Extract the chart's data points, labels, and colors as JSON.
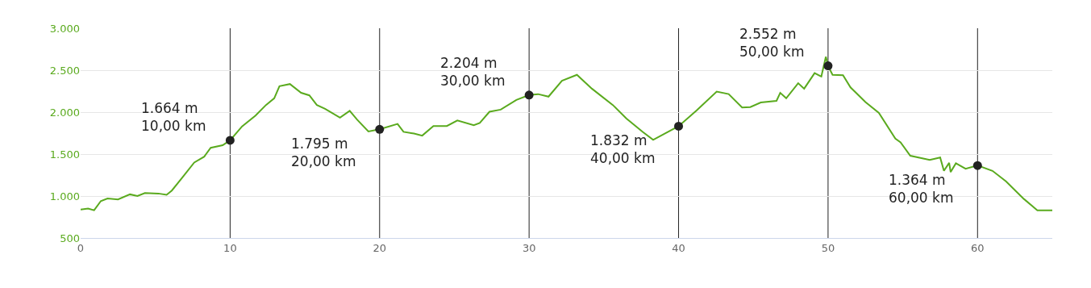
{
  "chart_data": {
    "type": "line",
    "xlim": [
      0,
      65
    ],
    "xticks": [
      0,
      10,
      20,
      30,
      40,
      50,
      60
    ],
    "ylim": [
      500,
      3000
    ],
    "yticks": [
      500,
      {
        "value": 1000,
        "label": "1.000"
      },
      {
        "value": 1500,
        "label": "1.500"
      },
      {
        "value": 2000,
        "label": "2.000"
      },
      {
        "value": 2500,
        "label": "2.500"
      },
      {
        "value": 3000,
        "label": "3.000"
      }
    ],
    "grid": "y",
    "series": [
      {
        "color": "#5aaa1e",
        "marker": "none",
        "x": [
          0,
          0.5,
          0.9,
          1.35,
          1.8,
          2.5,
          3.3,
          3.8,
          4.3,
          5.2,
          5.75,
          6.1,
          6.8,
          7.6,
          8.27,
          8.7,
          9.5,
          10,
          10.8,
          11.7,
          12.4,
          12.95,
          13.3,
          14.0,
          14.75,
          15.3,
          15.8,
          16.35,
          17.35,
          18.0,
          18.5,
          19.25,
          20,
          21.2,
          21.6,
          22.3,
          22.85,
          23.6,
          24.5,
          25.2,
          26.3,
          26.7,
          27.35,
          28.1,
          29.15,
          30,
          30.6,
          31.3,
          32.2,
          33.2,
          34.2,
          35.6,
          36.5,
          37.6,
          38.3,
          40,
          41.2,
          42.55,
          43.35,
          44.25,
          44.8,
          45.5,
          46.55,
          46.8,
          47.2,
          48.0,
          48.4,
          49.1,
          49.55,
          49.85,
          50,
          50.3,
          51.0,
          51.5,
          52.5,
          53.4,
          54.5,
          54.85,
          55.5,
          56.8,
          57.5,
          57.75,
          58.1,
          58.2,
          58.55,
          59.2,
          60,
          61.0,
          61.9,
          63.1,
          64.0,
          65.0
        ],
        "values": [
          840,
          850,
          830,
          940,
          970,
          960,
          1020,
          1000,
          1035,
          1030,
          1015,
          1065,
          1220,
          1400,
          1470,
          1575,
          1605,
          1664,
          1830,
          1960,
          2085,
          2165,
          2310,
          2335,
          2230,
          2200,
          2085,
          2040,
          1935,
          2015,
          1910,
          1770,
          1795,
          1860,
          1765,
          1745,
          1720,
          1835,
          1835,
          1900,
          1845,
          1870,
          2005,
          2030,
          2145,
          2204,
          2215,
          2185,
          2375,
          2445,
          2280,
          2085,
          1925,
          1765,
          1670,
          1832,
          2020,
          2245,
          2215,
          2055,
          2060,
          2115,
          2135,
          2230,
          2165,
          2345,
          2280,
          2465,
          2425,
          2660,
          2552,
          2445,
          2440,
          2295,
          2120,
          1990,
          1685,
          1640,
          1480,
          1430,
          1460,
          1300,
          1395,
          1285,
          1390,
          1325,
          1364,
          1300,
          1175,
          965,
          830,
          830
        ]
      },
      {
        "type": "scatter",
        "color": "#222222",
        "marker": "circle",
        "x": [
          10,
          20,
          30,
          40,
          50,
          60
        ],
        "values": [
          1664,
          1795,
          2204,
          1832,
          2552,
          1364
        ]
      }
    ],
    "ref_lines": [
      {
        "axis": "x",
        "value": 10,
        "color": "#222222"
      },
      {
        "axis": "x",
        "value": 20,
        "color": "#222222"
      },
      {
        "axis": "x",
        "value": 30,
        "color": "#222222"
      },
      {
        "axis": "x",
        "value": 40,
        "color": "#222222"
      },
      {
        "axis": "x",
        "value": 50,
        "color": "#222222"
      },
      {
        "axis": "x",
        "value": 60,
        "color": "#222222"
      }
    ],
    "annotations": [
      {
        "text": "1.664 m\n10,00 km",
        "x": 10,
        "y": 1664
      },
      {
        "text": "1.795 m\n20,00 km",
        "x": 20,
        "y": 1795
      },
      {
        "text": "2.204 m\n30,00 km",
        "x": 30,
        "y": 2204
      },
      {
        "text": "1.832 m\n40,00 km",
        "x": 40,
        "y": 1832
      },
      {
        "text": "2.552 m\n50,00 km",
        "x": 50,
        "y": 2552
      },
      {
        "text": "1.364 m\n60,00 km",
        "x": 60,
        "y": 1364
      }
    ]
  }
}
